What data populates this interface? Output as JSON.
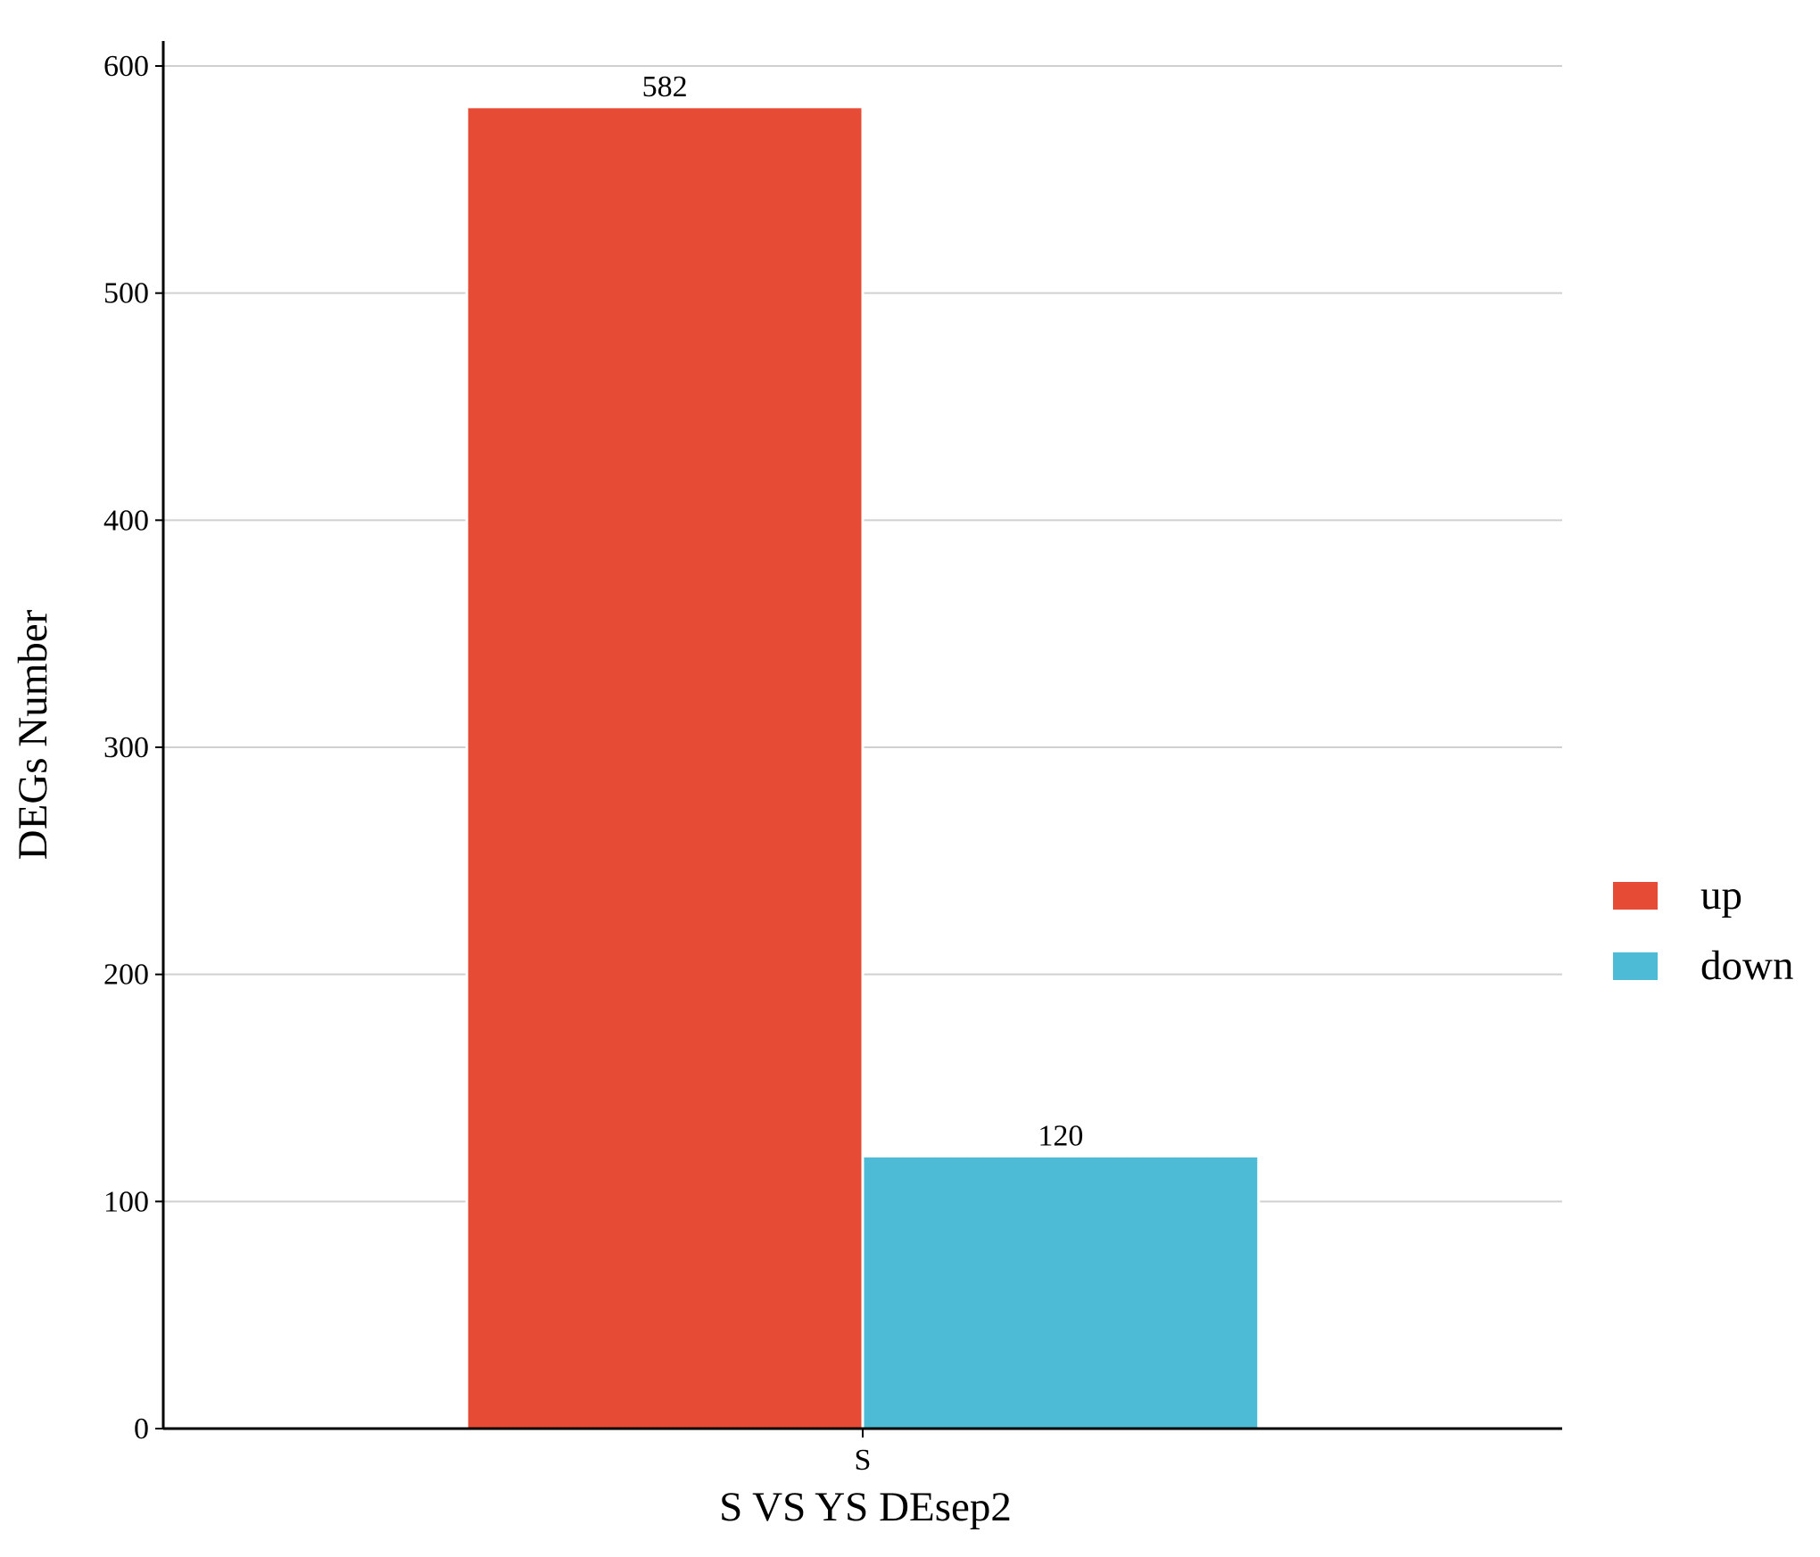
{
  "chart_data": {
    "type": "bar",
    "x_label": "S VS YS DEsep2",
    "y_label": "DEGs Number",
    "categories": [
      "S"
    ],
    "series": [
      {
        "name": "up",
        "color": "#E64B35",
        "values": [
          582
        ]
      },
      {
        "name": "down",
        "color": "#4DBBD5",
        "values": [
          120
        ]
      }
    ],
    "ylim": [
      0,
      611
    ],
    "yticks": [
      0,
      100,
      200,
      300,
      400,
      500,
      600
    ],
    "grid": true,
    "legend": "right"
  }
}
